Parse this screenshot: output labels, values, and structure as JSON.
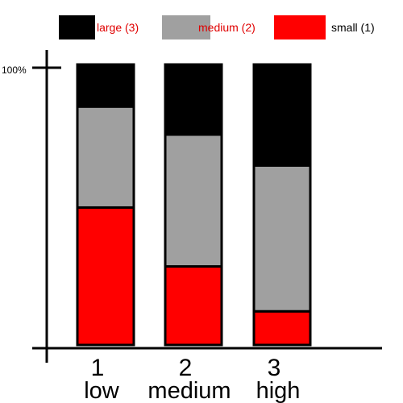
{
  "chart_data": {
    "type": "bar",
    "stacked": true,
    "title": "",
    "xlabel": "",
    "ylabel": "",
    "y_tick_label": "100%",
    "ylim": [
      0,
      100
    ],
    "categories": [
      "1",
      "2",
      "3"
    ],
    "category_sublabels": [
      "low",
      "medium",
      "high"
    ],
    "series": [
      {
        "name": "small (1)",
        "color": "#ff0000",
        "text_color": "#000000",
        "values": [
          49,
          28,
          12
        ]
      },
      {
        "name": "medium (2)",
        "color": "#a0a0a0",
        "text_color": "#e00000",
        "values": [
          36,
          47,
          52
        ]
      },
      {
        "name": "large (3)",
        "color": "#000000",
        "text_color": "#e00000",
        "values": [
          15,
          25,
          36
        ]
      }
    ],
    "legend_position": "top",
    "grid": false
  }
}
